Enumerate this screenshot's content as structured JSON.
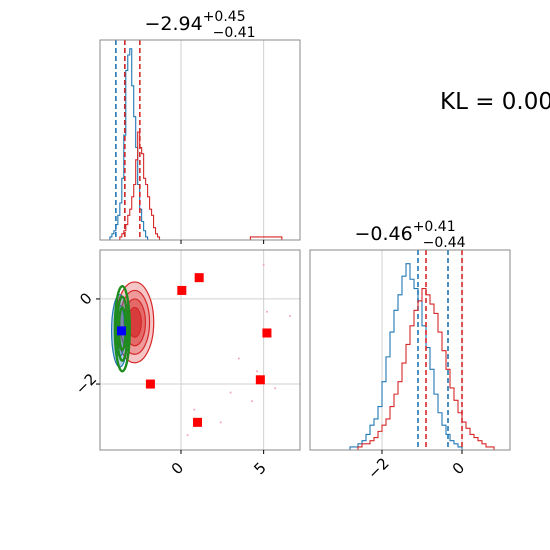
{
  "chart_data": {
    "type": "corner",
    "panels": [
      {
        "id": "hist_x",
        "type": "step-histogram",
        "position": "top-left",
        "title": {
          "median": "−2.94",
          "plus": "+0.45",
          "minus": "−0.41"
        },
        "xlim": [
          -4.9,
          7.2
        ],
        "series": [
          {
            "name": "blue",
            "color": "#1f77b4",
            "x_edges_start": -4.9,
            "bin_width": 0.12,
            "counts": [
              0,
              0,
              0,
              0,
              0,
              1,
              2,
              3,
              5,
              8,
              12,
              20,
              34,
              55,
              60,
              62,
              50,
              40,
              30,
              18,
              10,
              6,
              3,
              1,
              0,
              0
            ]
          },
          {
            "name": "red",
            "color": "#d62728",
            "x_edges_start": -4.9,
            "bin_width": 0.12,
            "counts": [
              0,
              0,
              0,
              0,
              0,
              0,
              0,
              0,
              0,
              0,
              1,
              2,
              3,
              5,
              8,
              10,
              14,
              18,
              26,
              35,
              30,
              28,
              20,
              18,
              14,
              10,
              8,
              4,
              2,
              1,
              0
            ],
            "tail": [
              {
                "x0": 4.2,
                "x1": 6.1,
                "count": 1
              }
            ]
          }
        ],
        "quantile_lines": {
          "blue": [
            -3.94,
            -3.4
          ],
          "red": [
            -3.4,
            -2.49
          ]
        },
        "xticks": [
          0,
          5
        ],
        "xtick_labels_visible": false
      },
      {
        "id": "hist_y",
        "type": "step-histogram",
        "position": "bottom-right",
        "title": {
          "median": "−0.46",
          "plus": "+0.41",
          "minus": "−0.44"
        },
        "xlim": [
          -3.8,
          1.2
        ],
        "series": [
          {
            "name": "blue",
            "color": "#1f77b4",
            "x_edges_start": -3.8,
            "bin_width": 0.1,
            "counts": [
              0,
              0,
              0,
              0,
              0,
              0,
              0,
              0,
              0,
              0,
              1,
              1,
              2,
              3,
              5,
              8,
              10,
              14,
              22,
              30,
              38,
              45,
              50,
              56,
              60,
              55,
              52,
              48,
              40,
              33,
              26,
              18,
              12,
              8,
              5,
              3,
              2,
              1,
              0,
              0,
              0,
              0,
              0,
              0,
              0,
              0,
              0,
              0,
              0,
              0
            ]
          },
          {
            "name": "red",
            "color": "#d62728",
            "x_edges_start": -3.8,
            "bin_width": 0.1,
            "counts": [
              0,
              0,
              0,
              0,
              0,
              0,
              0,
              0,
              0,
              0,
              0,
              0,
              1,
              2,
              2,
              3,
              4,
              6,
              8,
              10,
              14,
              18,
              22,
              28,
              34,
              40,
              45,
              48,
              52,
              50,
              47,
              44,
              38,
              32,
              26,
              20,
              16,
              12,
              9,
              7,
              5,
              4,
              3,
              2,
              1,
              1,
              0,
              0,
              0,
              0
            ]
          }
        ],
        "quantile_lines": {
          "blue": [
            -1.1,
            -0.35
          ],
          "red": [
            -0.9,
            0.0
          ]
        },
        "xticks": [
          -2,
          0
        ],
        "xtick_labels": [
          "−2",
          "0"
        ]
      },
      {
        "id": "scatter_2d",
        "type": "scatter-contour",
        "position": "bottom-left",
        "xlim": [
          -4.9,
          7.2
        ],
        "ylim": [
          -3.55,
          1.15
        ],
        "xticks": [
          0,
          5
        ],
        "xtick_labels": [
          "0",
          "5"
        ],
        "yticks": [
          0,
          -2
        ],
        "ytick_labels": [
          "0",
          "−2"
        ],
        "red_squares": [
          {
            "x": 1.1,
            "y": 0.5
          },
          {
            "x": 0.05,
            "y": 0.2
          },
          {
            "x": 5.2,
            "y": -0.8
          },
          {
            "x": -1.85,
            "y": -2.0
          },
          {
            "x": 4.8,
            "y": -1.9
          },
          {
            "x": 1.0,
            "y": -2.9
          }
        ],
        "blue_square": {
          "x": -3.6,
          "y": -0.75
        },
        "pink_points": [
          {
            "x": 5.3,
            "y": -0.8
          },
          {
            "x": 5.0,
            "y": 0.8
          },
          {
            "x": 4.6,
            "y": -1.7
          },
          {
            "x": 3.5,
            "y": -1.4
          },
          {
            "x": 2.4,
            "y": -2.9
          },
          {
            "x": 0.8,
            "y": -2.6
          },
          {
            "x": 0.4,
            "y": -3.2
          },
          {
            "x": 5.7,
            "y": -2.1
          },
          {
            "x": 6.6,
            "y": -0.4
          },
          {
            "x": 3.0,
            "y": -2.2
          },
          {
            "x": 5.2,
            "y": -0.3
          },
          {
            "x": 4.3,
            "y": -2.4
          }
        ],
        "contours": {
          "red": {
            "center": [
              -2.8,
              -0.55
            ],
            "radii": [
              [
                1.15,
                0.95
              ],
              [
                0.9,
                0.75
              ],
              [
                0.65,
                0.55
              ],
              [
                0.4,
                0.35
              ]
            ]
          },
          "blue": {
            "center": [
              -3.7,
              -0.75
            ],
            "radii": [
              [
                0.5,
                0.85
              ],
              [
                0.3,
                0.6
              ]
            ]
          },
          "green": {
            "center": [
              -3.55,
              -0.7
            ],
            "radii": [
              [
                0.45,
                1.0
              ],
              [
                0.32,
                0.75
              ],
              [
                0.2,
                0.5
              ]
            ]
          }
        }
      }
    ],
    "annotation": "KL = 0.00"
  }
}
